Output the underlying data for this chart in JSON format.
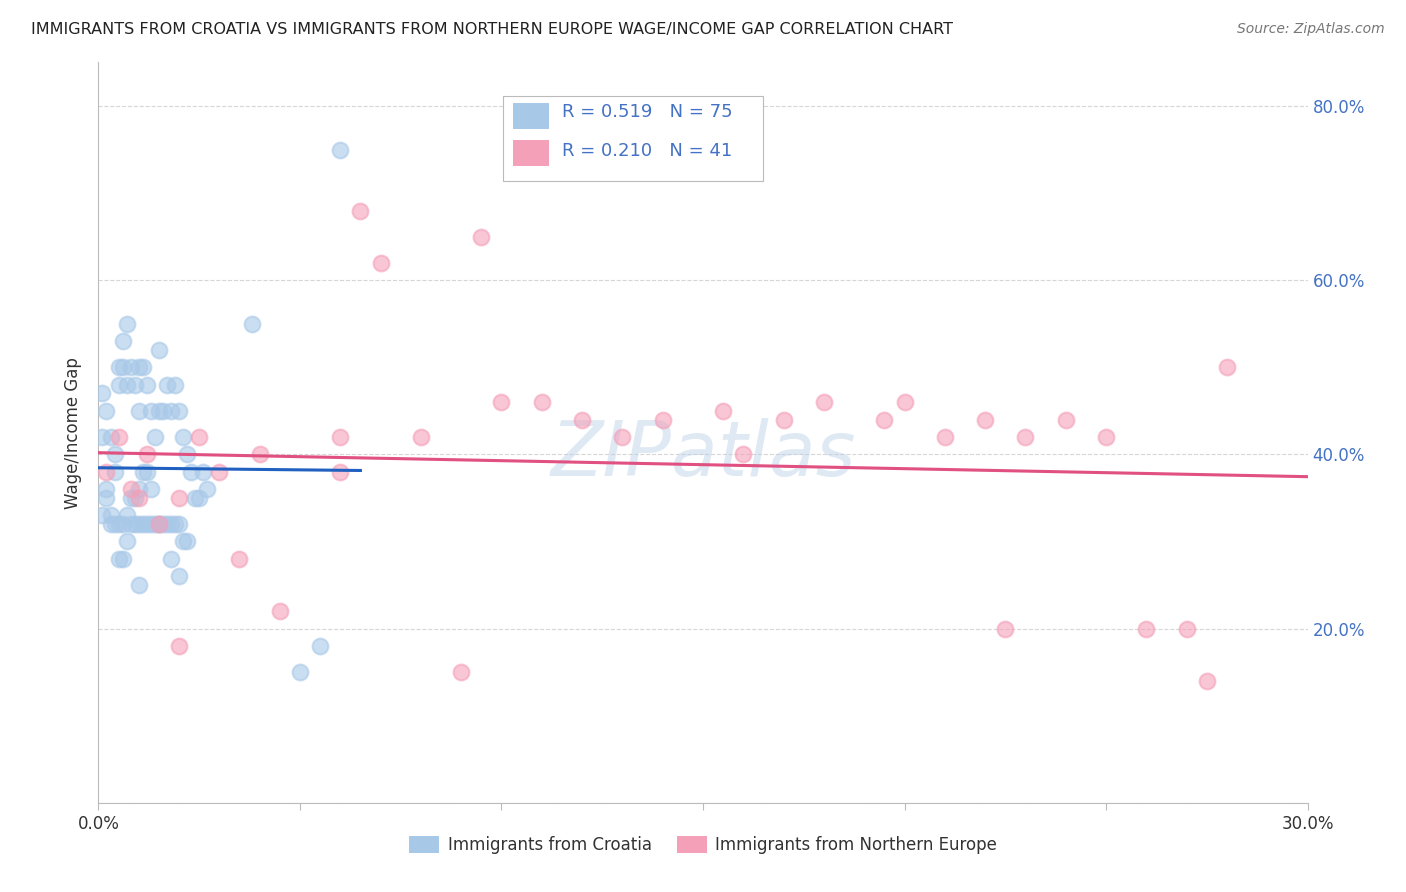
{
  "title": "IMMIGRANTS FROM CROATIA VS IMMIGRANTS FROM NORTHERN EUROPE WAGE/INCOME GAP CORRELATION CHART",
  "source": "Source: ZipAtlas.com",
  "ylabel": "Wage/Income Gap",
  "watermark": "ZIPatlas",
  "xlim": [
    0.0,
    0.3
  ],
  "ylim": [
    0.0,
    0.85
  ],
  "R1": 0.519,
  "N1": 75,
  "R2": 0.21,
  "N2": 41,
  "color_blue": "#a8c8e8",
  "color_pink": "#f4a0b8",
  "line_blue": "#2060c0",
  "line_pink": "#e05080",
  "title_color": "#222222",
  "label_color": "#333333",
  "axis_color": "#4472c4",
  "background_color": "#ffffff",
  "grid_color": "#cccccc",
  "legend1_label": "Immigrants from Croatia",
  "legend2_label": "Immigrants from Northern Europe",
  "blue_scatter_x": [
    0.002,
    0.003,
    0.004,
    0.005,
    0.005,
    0.005,
    0.006,
    0.006,
    0.006,
    0.007,
    0.007,
    0.007,
    0.007,
    0.008,
    0.008,
    0.008,
    0.009,
    0.009,
    0.009,
    0.01,
    0.01,
    0.01,
    0.01,
    0.011,
    0.011,
    0.011,
    0.012,
    0.012,
    0.012,
    0.013,
    0.013,
    0.013,
    0.014,
    0.014,
    0.015,
    0.015,
    0.015,
    0.016,
    0.016,
    0.017,
    0.017,
    0.018,
    0.018,
    0.019,
    0.019,
    0.02,
    0.02,
    0.021,
    0.021,
    0.022,
    0.022,
    0.023,
    0.024,
    0.025,
    0.026,
    0.027,
    0.001,
    0.001,
    0.001,
    0.002,
    0.002,
    0.003,
    0.003,
    0.004,
    0.004,
    0.005,
    0.006,
    0.038,
    0.015,
    0.018,
    0.02,
    0.06,
    0.05,
    0.055,
    0.01
  ],
  "blue_scatter_y": [
    0.35,
    0.33,
    0.38,
    0.5,
    0.48,
    0.32,
    0.53,
    0.5,
    0.32,
    0.55,
    0.48,
    0.33,
    0.3,
    0.5,
    0.35,
    0.32,
    0.48,
    0.35,
    0.32,
    0.5,
    0.45,
    0.36,
    0.32,
    0.5,
    0.38,
    0.32,
    0.48,
    0.38,
    0.32,
    0.45,
    0.36,
    0.32,
    0.42,
    0.32,
    0.52,
    0.45,
    0.32,
    0.45,
    0.32,
    0.48,
    0.32,
    0.45,
    0.32,
    0.48,
    0.32,
    0.45,
    0.32,
    0.42,
    0.3,
    0.4,
    0.3,
    0.38,
    0.35,
    0.35,
    0.38,
    0.36,
    0.47,
    0.42,
    0.33,
    0.45,
    0.36,
    0.42,
    0.32,
    0.4,
    0.32,
    0.28,
    0.28,
    0.55,
    0.32,
    0.28,
    0.26,
    0.75,
    0.15,
    0.18,
    0.25
  ],
  "pink_scatter_x": [
    0.002,
    0.005,
    0.008,
    0.01,
    0.012,
    0.015,
    0.02,
    0.02,
    0.025,
    0.03,
    0.035,
    0.04,
    0.045,
    0.06,
    0.065,
    0.07,
    0.08,
    0.095,
    0.1,
    0.11,
    0.12,
    0.13,
    0.14,
    0.155,
    0.16,
    0.17,
    0.18,
    0.195,
    0.2,
    0.21,
    0.22,
    0.225,
    0.23,
    0.24,
    0.25,
    0.26,
    0.27,
    0.275,
    0.28,
    0.06,
    0.09
  ],
  "pink_scatter_y": [
    0.38,
    0.42,
    0.36,
    0.35,
    0.4,
    0.32,
    0.35,
    0.18,
    0.42,
    0.38,
    0.28,
    0.4,
    0.22,
    0.42,
    0.68,
    0.62,
    0.42,
    0.65,
    0.46,
    0.46,
    0.44,
    0.42,
    0.44,
    0.45,
    0.4,
    0.44,
    0.46,
    0.44,
    0.46,
    0.42,
    0.44,
    0.2,
    0.42,
    0.44,
    0.42,
    0.2,
    0.2,
    0.14,
    0.5,
    0.38,
    0.15
  ]
}
